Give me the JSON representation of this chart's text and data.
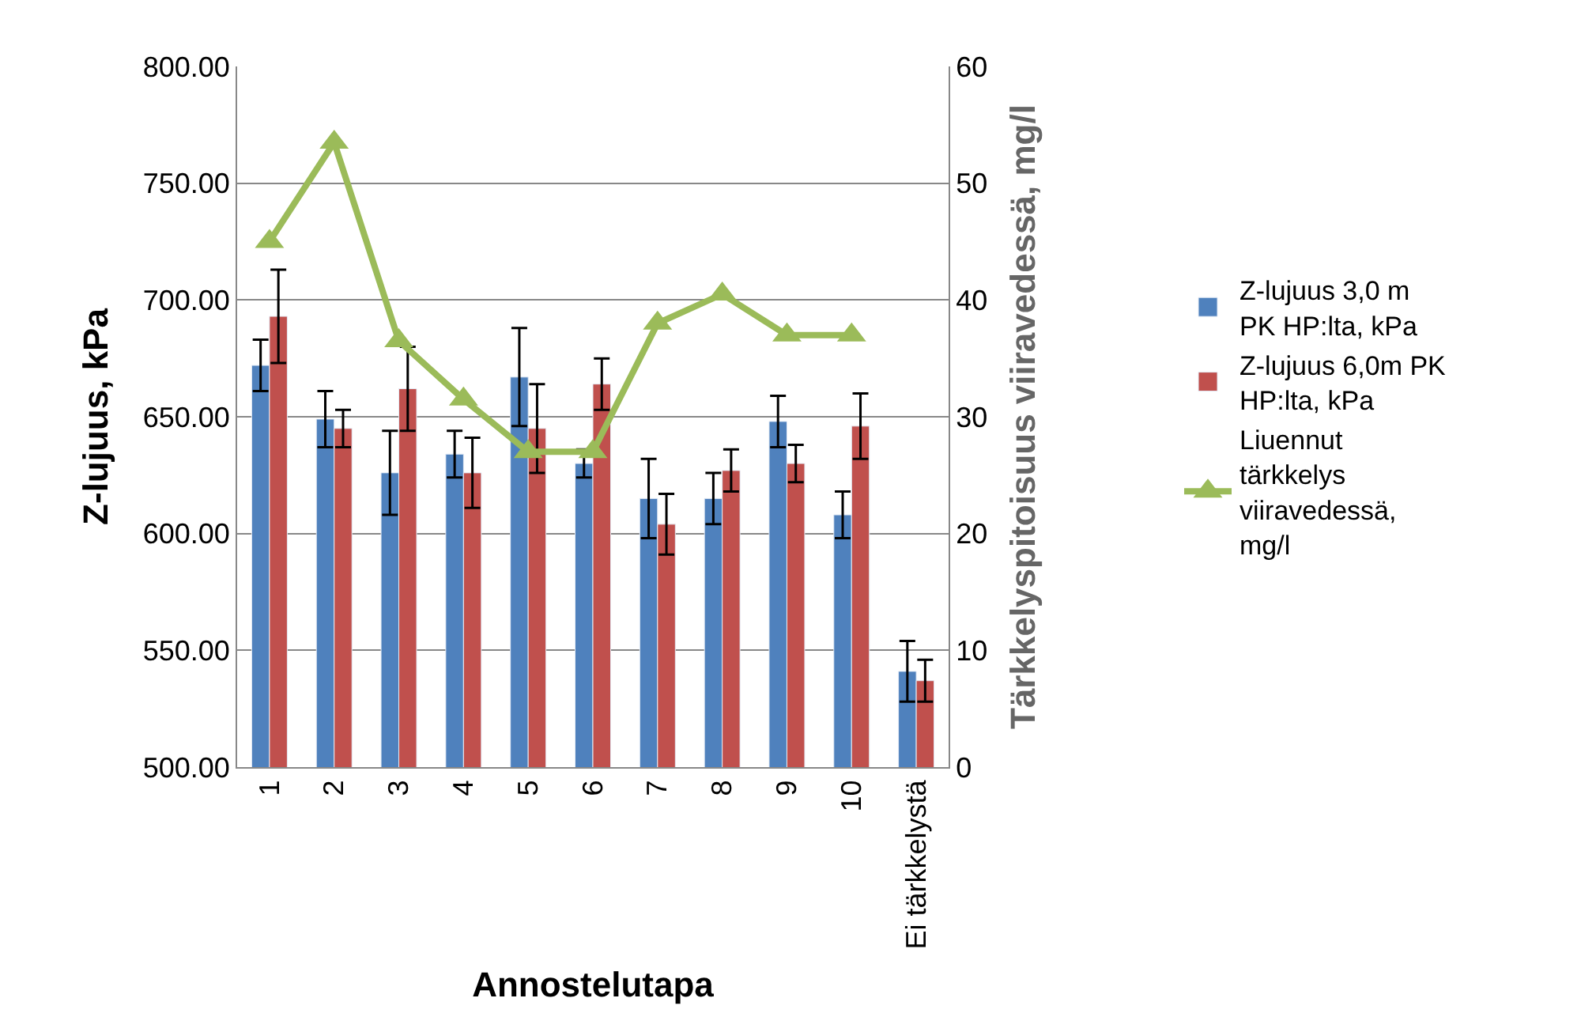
{
  "chart_data": {
    "type": "bar",
    "xlabel": "Annostelutapa",
    "ylabel": "Z-lujuus, kPa",
    "y2label": "Tärkkelyspitoisuus viiravedessä, mg/l",
    "categories": [
      "1",
      "2",
      "3",
      "4",
      "5",
      "6",
      "7",
      "8",
      "9",
      "10",
      "Ei tärkkelystä"
    ],
    "series": [
      {
        "name": "Z-lujuus 3,0 m PK HP:lta, kPa",
        "color": "#4f81bd",
        "values": [
          672,
          649,
          626,
          634,
          667,
          630,
          615,
          615,
          648,
          608,
          541
        ],
        "errors": [
          11,
          12,
          18,
          10,
          21,
          6,
          17,
          11,
          11,
          10,
          13
        ]
      },
      {
        "name": "Z-lujuus 6,0m PK HP:lta, kPa",
        "color": "#c0504d",
        "values": [
          693,
          645,
          662,
          626,
          645,
          664,
          604,
          627,
          630,
          646,
          537
        ],
        "errors": [
          20,
          8,
          18,
          15,
          19,
          11,
          13,
          9,
          8,
          14,
          9
        ]
      },
      {
        "name": "Liuennut tärkkelys viiravedessä, mg/l",
        "type": "line",
        "axis": "y2",
        "color": "#9bbb59",
        "marker": "triangle",
        "values": [
          45,
          53.5,
          36.5,
          31.5,
          27,
          27,
          38,
          40.5,
          37,
          37,
          null
        ]
      }
    ],
    "ylim": [
      500,
      800
    ],
    "yticks": [
      {
        "value": 500,
        "label": "500.00"
      },
      {
        "value": 550,
        "label": "550.00"
      },
      {
        "value": 600,
        "label": "600.00"
      },
      {
        "value": 650,
        "label": "650.00"
      },
      {
        "value": 700,
        "label": "700.00"
      },
      {
        "value": 750,
        "label": "750.00"
      },
      {
        "value": 800,
        "label": "800.00"
      }
    ],
    "y2lim": [
      0,
      60
    ],
    "y2ticks": [
      0,
      10,
      20,
      30,
      40,
      50,
      60
    ],
    "grid": "y",
    "legend": "right"
  }
}
